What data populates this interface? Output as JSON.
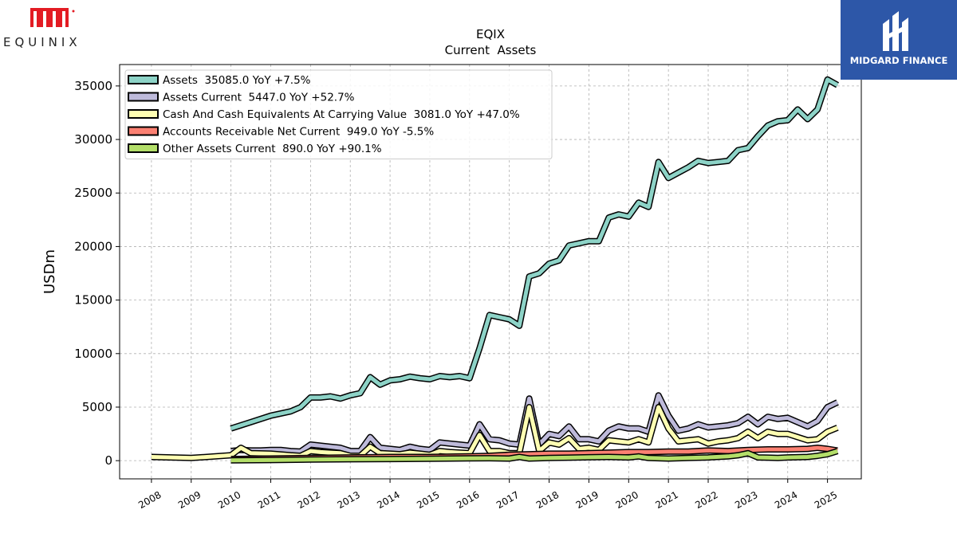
{
  "logos": {
    "left": {
      "icon": "equinix-logo-icon",
      "wordmark": "EQUINIX",
      "color": "#e31b23"
    },
    "right": {
      "icon": "midgard-finance-logo-icon",
      "wordmark": "MIDGARD FINANCE",
      "color": "#2d57a8"
    }
  },
  "chart_data": {
    "type": "line",
    "title": "EQIX",
    "subtitle": "Current  Assets",
    "xlabel": "",
    "ylabel": "USDm",
    "xlim": [
      2007.2,
      2025.85
    ],
    "ylim": [
      -1700,
      37000
    ],
    "x_ticks": [
      2008,
      2009,
      2010,
      2011,
      2012,
      2013,
      2014,
      2015,
      2016,
      2017,
      2018,
      2019,
      2020,
      2021,
      2022,
      2023,
      2024,
      2025
    ],
    "x_tick_labels": [
      "2008",
      "2009",
      "2010",
      "2011",
      "2012",
      "2013",
      "2014",
      "2015",
      "2016",
      "2017",
      "2018",
      "2019",
      "2020",
      "2021",
      "2022",
      "2023",
      "2024",
      "2025"
    ],
    "y_ticks": [
      0,
      5000,
      10000,
      15000,
      20000,
      25000,
      30000,
      35000
    ],
    "y_tick_labels": [
      "0",
      "5000",
      "10000",
      "15000",
      "20000",
      "25000",
      "30000",
      "35000"
    ],
    "grid": true,
    "legend_position": "top-left",
    "series": [
      {
        "name": "Assets  35085.0 YoY +7.5%",
        "color": "#8dd3c7",
        "points": [
          [
            2010.0,
            3000
          ],
          [
            2010.5,
            3600
          ],
          [
            2011.0,
            4200
          ],
          [
            2011.5,
            4600
          ],
          [
            2011.75,
            5000
          ],
          [
            2012.0,
            5900
          ],
          [
            2012.25,
            5900
          ],
          [
            2012.5,
            6000
          ],
          [
            2012.75,
            5800
          ],
          [
            2013.0,
            6100
          ],
          [
            2013.25,
            6300
          ],
          [
            2013.5,
            7800
          ],
          [
            2013.75,
            7100
          ],
          [
            2014.0,
            7500
          ],
          [
            2014.25,
            7600
          ],
          [
            2014.5,
            7850
          ],
          [
            2014.75,
            7700
          ],
          [
            2015.0,
            7600
          ],
          [
            2015.25,
            7900
          ],
          [
            2015.5,
            7800
          ],
          [
            2015.75,
            7900
          ],
          [
            2016.0,
            7700
          ],
          [
            2016.25,
            10500
          ],
          [
            2016.5,
            13600
          ],
          [
            2016.75,
            13400
          ],
          [
            2017.0,
            13200
          ],
          [
            2017.25,
            12600
          ],
          [
            2017.5,
            17200
          ],
          [
            2017.75,
            17500
          ],
          [
            2018.0,
            18400
          ],
          [
            2018.25,
            18700
          ],
          [
            2018.5,
            20100
          ],
          [
            2018.75,
            20300
          ],
          [
            2019.0,
            20500
          ],
          [
            2019.25,
            20500
          ],
          [
            2019.5,
            22700
          ],
          [
            2019.75,
            23000
          ],
          [
            2020.0,
            22800
          ],
          [
            2020.25,
            24100
          ],
          [
            2020.5,
            23700
          ],
          [
            2020.75,
            27900
          ],
          [
            2021.0,
            26400
          ],
          [
            2021.25,
            26900
          ],
          [
            2021.5,
            27400
          ],
          [
            2021.75,
            28000
          ],
          [
            2022.0,
            27800
          ],
          [
            2022.25,
            27900
          ],
          [
            2022.5,
            28000
          ],
          [
            2022.75,
            29000
          ],
          [
            2023.0,
            29200
          ],
          [
            2023.25,
            30300
          ],
          [
            2023.5,
            31300
          ],
          [
            2023.75,
            31700
          ],
          [
            2024.0,
            31800
          ],
          [
            2024.25,
            32800
          ],
          [
            2024.5,
            31900
          ],
          [
            2024.75,
            32800
          ],
          [
            2025.0,
            35600
          ],
          [
            2025.25,
            35085
          ]
        ]
      },
      {
        "name": "Assets Current  5447.0 YoY +52.7%",
        "color": "#bebada",
        "points": [
          [
            2010.0,
            900
          ],
          [
            2010.25,
            1000
          ],
          [
            2010.5,
            950
          ],
          [
            2010.75,
            950
          ],
          [
            2011.0,
            1000
          ],
          [
            2011.25,
            1000
          ],
          [
            2011.5,
            900
          ],
          [
            2011.75,
            850
          ],
          [
            2012.0,
            1500
          ],
          [
            2012.25,
            1400
          ],
          [
            2012.5,
            1300
          ],
          [
            2012.75,
            1200
          ],
          [
            2013.0,
            900
          ],
          [
            2013.25,
            900
          ],
          [
            2013.5,
            2200
          ],
          [
            2013.75,
            1200
          ],
          [
            2014.0,
            1100
          ],
          [
            2014.25,
            1000
          ],
          [
            2014.5,
            1300
          ],
          [
            2014.75,
            1100
          ],
          [
            2015.0,
            1000
          ],
          [
            2015.25,
            1700
          ],
          [
            2015.5,
            1600
          ],
          [
            2015.75,
            1500
          ],
          [
            2016.0,
            1400
          ],
          [
            2016.25,
            3400
          ],
          [
            2016.5,
            2000
          ],
          [
            2016.75,
            1900
          ],
          [
            2017.0,
            1600
          ],
          [
            2017.25,
            1500
          ],
          [
            2017.5,
            5800
          ],
          [
            2017.75,
            1500
          ],
          [
            2018.0,
            2500
          ],
          [
            2018.25,
            2300
          ],
          [
            2018.5,
            3200
          ],
          [
            2018.75,
            2000
          ],
          [
            2019.0,
            2000
          ],
          [
            2019.25,
            1800
          ],
          [
            2019.5,
            2800
          ],
          [
            2019.75,
            3200
          ],
          [
            2020.0,
            3000
          ],
          [
            2020.25,
            3000
          ],
          [
            2020.5,
            2700
          ],
          [
            2020.75,
            6100
          ],
          [
            2021.0,
            4200
          ],
          [
            2021.25,
            2800
          ],
          [
            2021.5,
            3000
          ],
          [
            2021.75,
            3400
          ],
          [
            2022.0,
            3100
          ],
          [
            2022.25,
            3200
          ],
          [
            2022.5,
            3300
          ],
          [
            2022.75,
            3500
          ],
          [
            2023.0,
            4100
          ],
          [
            2023.25,
            3400
          ],
          [
            2023.5,
            4100
          ],
          [
            2023.75,
            3900
          ],
          [
            2024.0,
            4000
          ],
          [
            2024.25,
            3600
          ],
          [
            2024.5,
            3200
          ],
          [
            2024.75,
            3700
          ],
          [
            2025.0,
            5000
          ],
          [
            2025.25,
            5447
          ]
        ]
      },
      {
        "name": "Cash And Cash Equivalents At Carrying Value  3081.0 YoY +47.0%",
        "color": "#ffffb3",
        "points": [
          [
            2008.0,
            350
          ],
          [
            2009.0,
            250
          ],
          [
            2010.0,
            500
          ],
          [
            2010.25,
            1200
          ],
          [
            2010.5,
            700
          ],
          [
            2011.0,
            650
          ],
          [
            2011.5,
            500
          ],
          [
            2011.75,
            450
          ],
          [
            2012.0,
            900
          ],
          [
            2012.25,
            800
          ],
          [
            2012.5,
            750
          ],
          [
            2012.75,
            700
          ],
          [
            2013.0,
            450
          ],
          [
            2013.25,
            450
          ],
          [
            2013.5,
            1300
          ],
          [
            2013.75,
            700
          ],
          [
            2014.0,
            650
          ],
          [
            2014.25,
            600
          ],
          [
            2014.5,
            750
          ],
          [
            2014.75,
            650
          ],
          [
            2015.0,
            550
          ],
          [
            2015.25,
            900
          ],
          [
            2015.5,
            800
          ],
          [
            2015.75,
            750
          ],
          [
            2016.0,
            700
          ],
          [
            2016.25,
            2400
          ],
          [
            2016.5,
            900
          ],
          [
            2016.75,
            900
          ],
          [
            2017.0,
            700
          ],
          [
            2017.25,
            700
          ],
          [
            2017.5,
            5000
          ],
          [
            2017.75,
            900
          ],
          [
            2018.0,
            1700
          ],
          [
            2018.25,
            1500
          ],
          [
            2018.5,
            2100
          ],
          [
            2018.75,
            1100
          ],
          [
            2019.0,
            1200
          ],
          [
            2019.25,
            1000
          ],
          [
            2019.5,
            1900
          ],
          [
            2019.75,
            1800
          ],
          [
            2020.0,
            1700
          ],
          [
            2020.25,
            2000
          ],
          [
            2020.5,
            1700
          ],
          [
            2020.75,
            5000
          ],
          [
            2021.0,
            3000
          ],
          [
            2021.25,
            1800
          ],
          [
            2021.5,
            1900
          ],
          [
            2021.75,
            2000
          ],
          [
            2022.0,
            1600
          ],
          [
            2022.25,
            1800
          ],
          [
            2022.5,
            1900
          ],
          [
            2022.75,
            2100
          ],
          [
            2023.0,
            2700
          ],
          [
            2023.25,
            2100
          ],
          [
            2023.5,
            2700
          ],
          [
            2023.75,
            2500
          ],
          [
            2024.0,
            2500
          ],
          [
            2024.25,
            2200
          ],
          [
            2024.5,
            1900
          ],
          [
            2024.75,
            2000
          ],
          [
            2025.0,
            2700
          ],
          [
            2025.25,
            3081
          ]
        ]
      },
      {
        "name": "Accounts Receivable Net Current  949.0 YoY -5.5%",
        "color": "#fb8072",
        "points": [
          [
            2010.0,
            150
          ],
          [
            2011.0,
            200
          ],
          [
            2012.0,
            250
          ],
          [
            2013.0,
            300
          ],
          [
            2014.0,
            350
          ],
          [
            2015.0,
            350
          ],
          [
            2016.0,
            400
          ],
          [
            2016.5,
            450
          ],
          [
            2017.0,
            550
          ],
          [
            2017.5,
            600
          ],
          [
            2018.0,
            650
          ],
          [
            2018.5,
            650
          ],
          [
            2019.0,
            700
          ],
          [
            2019.5,
            750
          ],
          [
            2020.0,
            800
          ],
          [
            2020.5,
            800
          ],
          [
            2021.0,
            850
          ],
          [
            2021.5,
            850
          ],
          [
            2022.0,
            950
          ],
          [
            2022.5,
            900
          ],
          [
            2023.0,
            1000
          ],
          [
            2023.5,
            1050
          ],
          [
            2024.0,
            1050
          ],
          [
            2024.5,
            1100
          ],
          [
            2024.75,
            1200
          ],
          [
            2025.0,
            1100
          ],
          [
            2025.25,
            949
          ]
        ]
      },
      {
        "name": "Other Assets Current  890.0 YoY +90.1%",
        "color": "#b3de69",
        "points": [
          [
            2010.0,
            30
          ],
          [
            2011.0,
            60
          ],
          [
            2012.0,
            100
          ],
          [
            2013.0,
            130
          ],
          [
            2014.0,
            150
          ],
          [
            2015.0,
            180
          ],
          [
            2016.0,
            220
          ],
          [
            2016.5,
            230
          ],
          [
            2017.0,
            200
          ],
          [
            2017.25,
            350
          ],
          [
            2017.5,
            200
          ],
          [
            2018.0,
            260
          ],
          [
            2018.5,
            280
          ],
          [
            2019.0,
            320
          ],
          [
            2019.5,
            350
          ],
          [
            2020.0,
            300
          ],
          [
            2020.25,
            400
          ],
          [
            2020.5,
            250
          ],
          [
            2021.0,
            200
          ],
          [
            2021.5,
            250
          ],
          [
            2022.0,
            300
          ],
          [
            2022.5,
            400
          ],
          [
            2022.75,
            500
          ],
          [
            2023.0,
            700
          ],
          [
            2023.25,
            300
          ],
          [
            2023.5,
            280
          ],
          [
            2023.75,
            250
          ],
          [
            2024.0,
            300
          ],
          [
            2024.5,
            350
          ],
          [
            2024.75,
            450
          ],
          [
            2025.0,
            600
          ],
          [
            2025.25,
            890
          ]
        ]
      }
    ]
  }
}
